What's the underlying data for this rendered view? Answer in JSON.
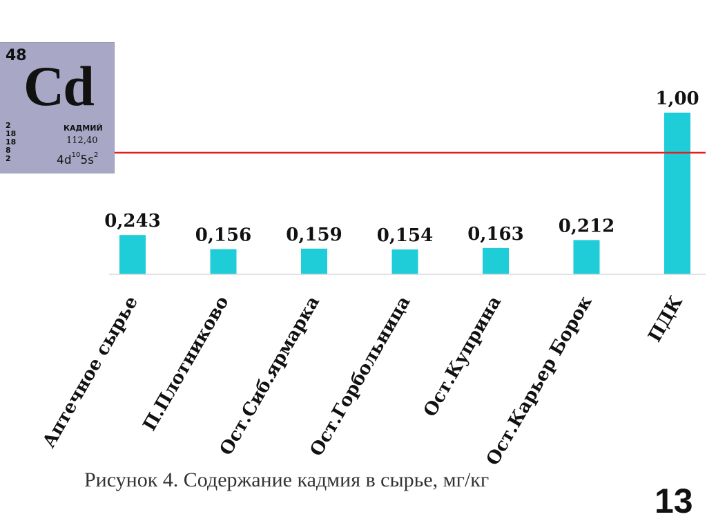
{
  "element_tile": {
    "atomic_number": "48",
    "symbol": "Cd",
    "shells": [
      "2",
      "18",
      "18",
      "8",
      "2"
    ],
    "name": "КАДМИЙ",
    "atomic_mass": "112,40",
    "config_base": "4d",
    "config_sup1": "10",
    "config_mid": "5s",
    "config_sup2": "2"
  },
  "chart_data": {
    "type": "bar",
    "categories": [
      "Аптечное сырье",
      "П.Плотниково",
      "Ост.Сиб.ярмарка",
      "Ост.Горбольница",
      "Ост.Куприна",
      "Ост.Карьер Борок",
      "ПДК"
    ],
    "values": [
      0.243,
      0.156,
      0.159,
      0.154,
      0.163,
      0.212,
      1.0
    ],
    "value_labels": [
      "0,243",
      "0,156",
      "0,159",
      "0,154",
      "0,163",
      "0,212",
      "1,00"
    ],
    "bar_color": "#1ecdd8",
    "reference_line_color": "#e21e1e",
    "ylim": [
      0,
      1.0
    ]
  },
  "caption": "Рисунок 4. Содержание кадмия в сырье, мг/кг",
  "slide_number": "13"
}
